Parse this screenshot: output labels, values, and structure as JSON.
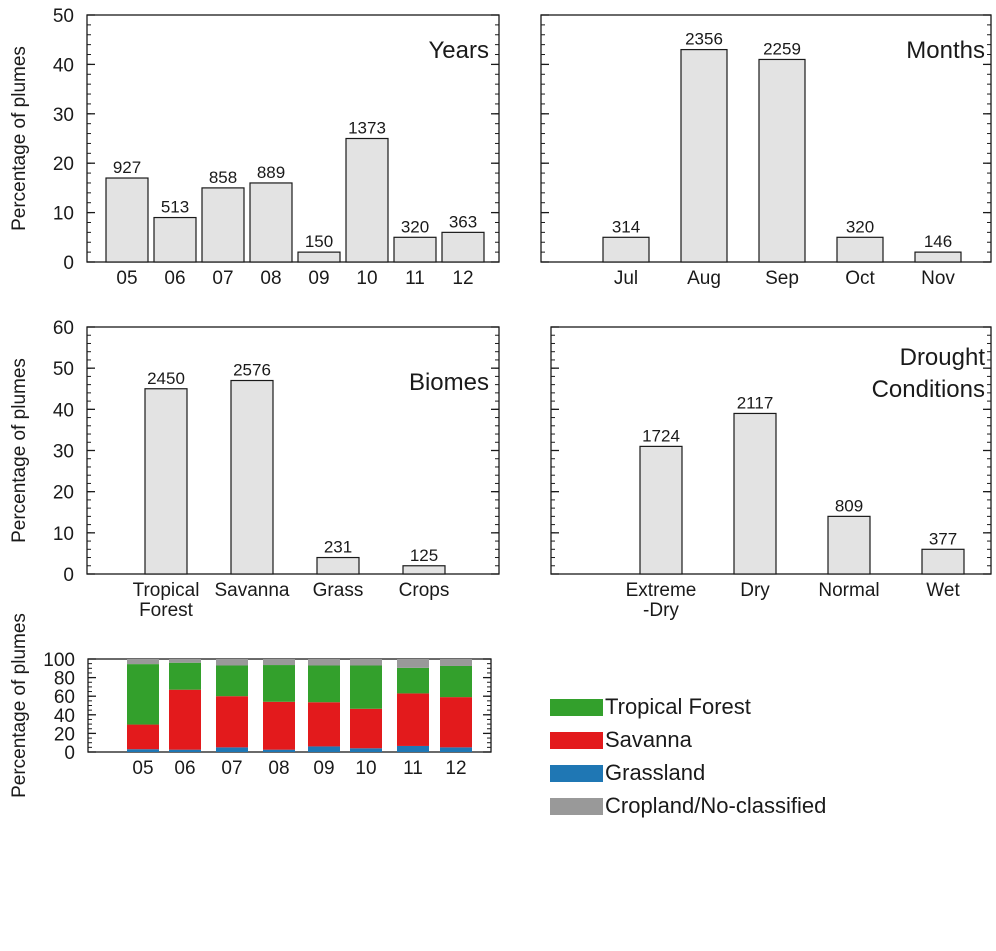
{
  "y_axis_label": "Percentage of plumes",
  "chart_data": [
    {
      "id": "years",
      "type": "bar",
      "title": "Years",
      "title_lines": [
        "Years"
      ],
      "categories": [
        [
          "05"
        ],
        [
          "06"
        ],
        [
          "07"
        ],
        [
          "08"
        ],
        [
          "09"
        ],
        [
          "10"
        ],
        [
          "11"
        ],
        [
          "12"
        ]
      ],
      "values": [
        17,
        9,
        15,
        16,
        2,
        25,
        5,
        6
      ],
      "labels": [
        "927",
        "513",
        "858",
        "889",
        "150",
        "1373",
        "320",
        "363"
      ],
      "ylim": [
        0,
        50
      ],
      "yticks": [
        0,
        10,
        20,
        30,
        40,
        50
      ],
      "ylabel": "Percentage of plumes",
      "show_yticklabels": true,
      "bar_color": "#e3e3e3"
    },
    {
      "id": "months",
      "type": "bar",
      "title": "Months",
      "title_lines": [
        "Months"
      ],
      "categories": [
        [
          "Jul"
        ],
        [
          "Aug"
        ],
        [
          "Sep"
        ],
        [
          "Oct"
        ],
        [
          "Nov"
        ]
      ],
      "values": [
        5,
        43,
        41,
        5,
        2
      ],
      "labels": [
        "314",
        "2356",
        "2259",
        "320",
        "146"
      ],
      "ylim": [
        0,
        50
      ],
      "yticks": [
        0,
        10,
        20,
        30,
        40,
        50
      ],
      "ylabel": "",
      "show_yticklabels": false,
      "bar_color": "#e3e3e3"
    },
    {
      "id": "biomes",
      "type": "bar",
      "title": "Biomes",
      "title_lines": [
        "Biomes"
      ],
      "categories": [
        [
          "Tropical",
          "Forest"
        ],
        [
          "Savanna"
        ],
        [
          "Grass"
        ],
        [
          "Crops"
        ]
      ],
      "values": [
        45,
        47,
        4,
        2
      ],
      "labels": [
        "2450",
        "2576",
        "231",
        "125"
      ],
      "ylim": [
        0,
        60
      ],
      "yticks": [
        0,
        10,
        20,
        30,
        40,
        50,
        60
      ],
      "ylabel": "Percentage of plumes",
      "show_yticklabels": true,
      "bar_color": "#e3e3e3"
    },
    {
      "id": "drought",
      "type": "bar",
      "title": "Drought Conditions",
      "title_lines": [
        "Drought",
        "Conditions"
      ],
      "categories": [
        [
          "Extreme",
          "-Dry"
        ],
        [
          "Dry"
        ],
        [
          "Normal"
        ],
        [
          "Wet"
        ]
      ],
      "values": [
        31,
        39,
        14,
        6
      ],
      "labels": [
        "1724",
        "2117",
        "809",
        "377"
      ],
      "ylim": [
        0,
        60
      ],
      "yticks": [
        0,
        10,
        20,
        30,
        40,
        50,
        60
      ],
      "ylabel": "",
      "show_yticklabels": false,
      "bar_color": "#e3e3e3"
    },
    {
      "id": "biome_by_year",
      "type": "bar",
      "stacked": true,
      "title": "",
      "categories": [
        "05",
        "06",
        "07",
        "08",
        "09",
        "10",
        "11",
        "12"
      ],
      "series": [
        {
          "name": "Grassland",
          "color": "#1f77b4",
          "values": [
            3,
            2.5,
            5,
            2.5,
            6,
            4,
            6.5,
            5
          ]
        },
        {
          "name": "Savanna",
          "color": "#e31a1c",
          "values": [
            26.5,
            64.5,
            55,
            51.5,
            47.5,
            42.5,
            56.5,
            54
          ]
        },
        {
          "name": "Tropical Forest",
          "color": "#33a02c",
          "values": [
            65,
            29,
            33,
            39.5,
            39.5,
            46.5,
            27.5,
            33.5
          ]
        },
        {
          "name": "Cropland/No-classified",
          "color": "#999999",
          "values": [
            5.5,
            4,
            7,
            6.5,
            7,
            7,
            9.5,
            7.5
          ]
        }
      ],
      "legend_order": [
        "Tropical Forest",
        "Savanna",
        "Grassland",
        "Cropland/No-classified"
      ],
      "ylim": [
        0,
        100
      ],
      "yticks": [
        0,
        20,
        40,
        60,
        80,
        100
      ],
      "ylabel": "Percentage of plumes",
      "legend": "right"
    }
  ]
}
